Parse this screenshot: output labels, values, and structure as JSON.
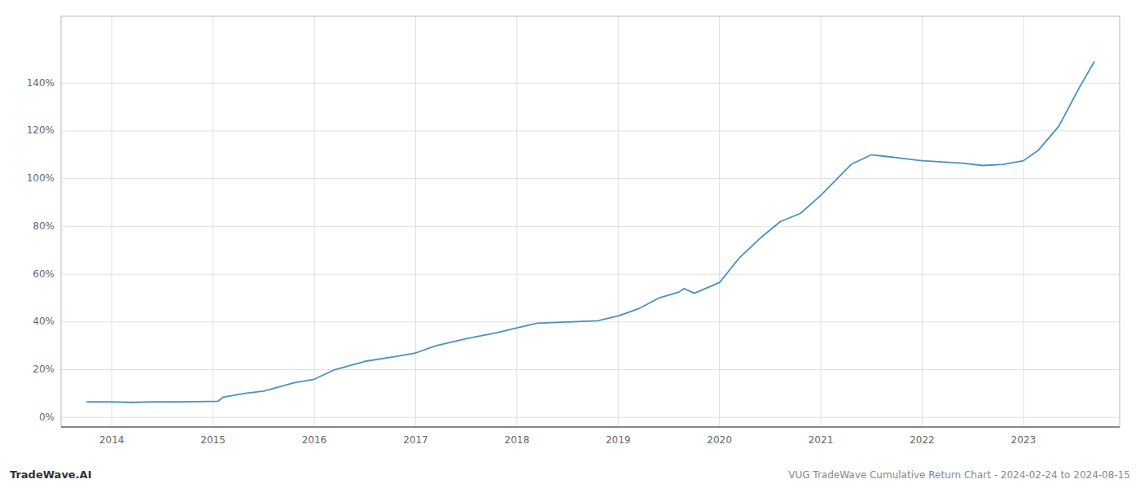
{
  "chart_data": {
    "type": "line",
    "title": "VUG TradeWave Cumulative Return Chart - 2024-02-24 to 2024-08-15",
    "annotations": [
      "TradeWave.AI"
    ],
    "x": [
      2013.75,
      2014.0,
      2014.2,
      2014.4,
      2014.6,
      2014.8,
      2015.0,
      2015.05,
      2015.1,
      2015.3,
      2015.5,
      2015.8,
      2016.0,
      2016.2,
      2016.5,
      2016.8,
      2017.0,
      2017.2,
      2017.5,
      2017.8,
      2018.0,
      2018.2,
      2018.5,
      2018.8,
      2019.0,
      2019.2,
      2019.4,
      2019.6,
      2019.65,
      2019.75,
      2020.0,
      2020.2,
      2020.4,
      2020.6,
      2020.8,
      2021.0,
      2021.3,
      2021.5,
      2021.6,
      2021.8,
      2022.0,
      2022.2,
      2022.4,
      2022.6,
      2022.8,
      2023.0,
      2023.15,
      2023.35,
      2023.55,
      2023.7
    ],
    "values": [
      0.065,
      0.065,
      0.063,
      0.065,
      0.065,
      0.066,
      0.067,
      0.068,
      0.085,
      0.1,
      0.11,
      0.145,
      0.16,
      0.2,
      0.235,
      0.255,
      0.27,
      0.3,
      0.33,
      0.355,
      0.375,
      0.395,
      0.4,
      0.405,
      0.425,
      0.455,
      0.5,
      0.525,
      0.54,
      0.52,
      0.565,
      0.67,
      0.75,
      0.82,
      0.855,
      0.93,
      1.06,
      1.1,
      1.095,
      1.085,
      1.075,
      1.07,
      1.065,
      1.055,
      1.06,
      1.075,
      1.12,
      1.22,
      1.38,
      1.49
    ],
    "color": "#4a90c4",
    "xlim": [
      2013.5,
      2023.95
    ],
    "ylim": [
      -0.04,
      1.68
    ],
    "xticks": [
      2014,
      2015,
      2016,
      2017,
      2018,
      2019,
      2020,
      2021,
      2022,
      2023
    ],
    "yticks": [
      {
        "value": 0.0,
        "label": "0%"
      },
      {
        "value": 0.2,
        "label": "20%"
      },
      {
        "value": 0.4,
        "label": "40%"
      },
      {
        "value": 0.6,
        "label": "60%"
      },
      {
        "value": 0.8,
        "label": "80%"
      },
      {
        "value": 1.0,
        "label": "100%"
      },
      {
        "value": 1.2,
        "label": "120%"
      },
      {
        "value": 1.4,
        "label": "140%"
      }
    ],
    "grid": true
  }
}
